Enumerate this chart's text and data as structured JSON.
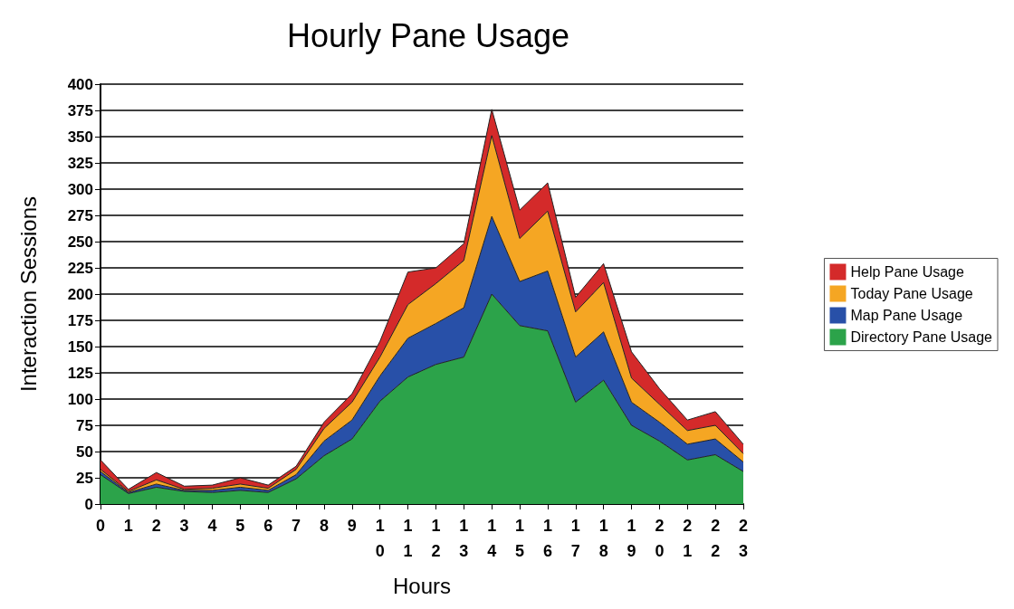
{
  "chart_data": {
    "type": "area",
    "stacked": true,
    "title": "Hourly Pane Usage",
    "xlabel": "Hours",
    "ylabel": "Interaction Sessions",
    "categories": [
      "0",
      "1",
      "2",
      "3",
      "4",
      "5",
      "6",
      "7",
      "8",
      "9",
      "1\n0",
      "1\n1",
      "1\n2",
      "1\n3",
      "1\n4",
      "1\n5",
      "1\n6",
      "1\n7",
      "1\n8",
      "1\n9",
      "2\n0",
      "2\n1",
      "2\n2",
      "2\n3"
    ],
    "series": [
      {
        "name": "Directory Pane Usage",
        "color": "#2ca34a",
        "values": [
          28,
          10,
          16,
          12,
          11,
          13,
          11,
          24,
          46,
          62,
          98,
          121,
          133,
          140,
          200,
          170,
          165,
          97,
          118,
          75,
          60,
          42,
          47,
          31
        ]
      },
      {
        "name": "Map Pane Usage",
        "color": "#2850a8",
        "values": [
          3,
          1,
          3,
          1,
          2,
          3,
          2,
          4,
          14,
          18,
          24,
          37,
          39,
          47,
          74,
          42,
          57,
          43,
          46,
          22,
          18,
          15,
          15,
          9
        ]
      },
      {
        "name": "Today Pane Usage",
        "color": "#f5a623",
        "values": [
          2,
          1,
          4,
          1,
          2,
          3,
          2,
          5,
          12,
          17,
          18,
          32,
          38,
          45,
          77,
          41,
          57,
          43,
          47,
          23,
          17,
          13,
          13,
          8
        ]
      },
      {
        "name": "Help Pane Usage",
        "color": "#d42a2a",
        "values": [
          9,
          2,
          7,
          3,
          3,
          6,
          3,
          3,
          6,
          8,
          15,
          31,
          15,
          16,
          25,
          27,
          27,
          14,
          18,
          25,
          15,
          10,
          13,
          9
        ]
      }
    ],
    "ylim": [
      0,
      400
    ],
    "yticks": [
      0,
      25,
      50,
      75,
      100,
      125,
      150,
      175,
      200,
      225,
      250,
      275,
      300,
      325,
      350,
      375,
      400
    ],
    "grid": "y",
    "legend": "right"
  }
}
